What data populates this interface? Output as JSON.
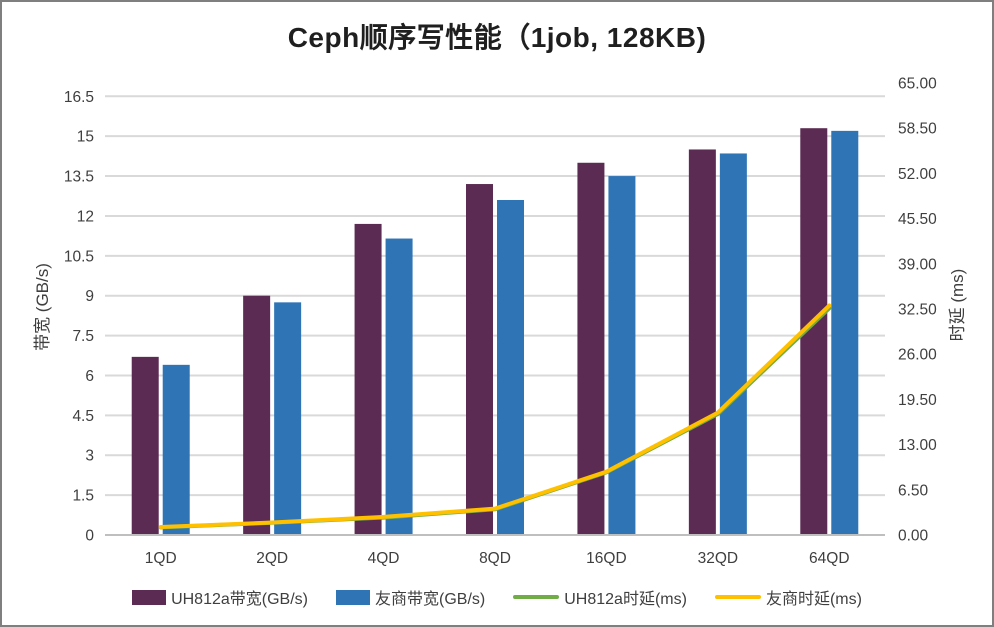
{
  "window": {
    "background": "#FFFFFF",
    "border_color": "#7F7F7F"
  },
  "chart_data": {
    "type": "bar",
    "subtype": "combo-bar-line-dual-axis",
    "title": "Ceph顺序写性能（1job, 128KB)",
    "categories": [
      "1QD",
      "2QD",
      "4QD",
      "8QD",
      "16QD",
      "32QD",
      "64QD"
    ],
    "bar_series": [
      {
        "name": "UH812a带宽(GB/s)",
        "axis": "left",
        "color": "#5C2B53",
        "values": [
          6.7,
          9.0,
          11.7,
          13.2,
          14.0,
          14.5,
          15.3
        ]
      },
      {
        "name": "友商带宽(GB/s)",
        "axis": "left",
        "color": "#2F74B5",
        "values": [
          6.4,
          8.75,
          11.15,
          12.6,
          13.5,
          14.35,
          15.2
        ]
      }
    ],
    "line_series": [
      {
        "name": "UH812a时延(ms)",
        "axis": "right",
        "color": "#70AD47",
        "values": [
          1.1,
          1.75,
          2.5,
          3.7,
          9.0,
          17.4,
          32.6
        ]
      },
      {
        "name": "友商时延(ms)",
        "axis": "right",
        "color": "#FFC000",
        "values": [
          1.15,
          1.8,
          2.6,
          3.8,
          9.1,
          17.6,
          33.0
        ]
      }
    ],
    "left_axis": {
      "title": "带宽 (GB/s)",
      "min": 0,
      "max": 17,
      "tick_interval": 1.5,
      "tick_labels": [
        "0",
        "1.5",
        "3",
        "4.5",
        "6",
        "7.5",
        "9",
        "10.5",
        "12",
        "13.5",
        "15",
        "16.5"
      ]
    },
    "right_axis": {
      "title": "时延 (ms)",
      "min": 0,
      "max": 65,
      "tick_interval": 6.5,
      "tick_labels": [
        "0.00",
        "6.50",
        "13.00",
        "19.50",
        "26.00",
        "32.50",
        "39.00",
        "45.50",
        "52.00",
        "58.50",
        "65.00"
      ]
    },
    "grid": true,
    "legend_position": "bottom",
    "style": {
      "gridline_color": "#D9D9D9",
      "axis_line_color": "#BFBFBF",
      "tick_text_color": "#3F3F3F",
      "title_color": "#1F1F1F"
    }
  }
}
